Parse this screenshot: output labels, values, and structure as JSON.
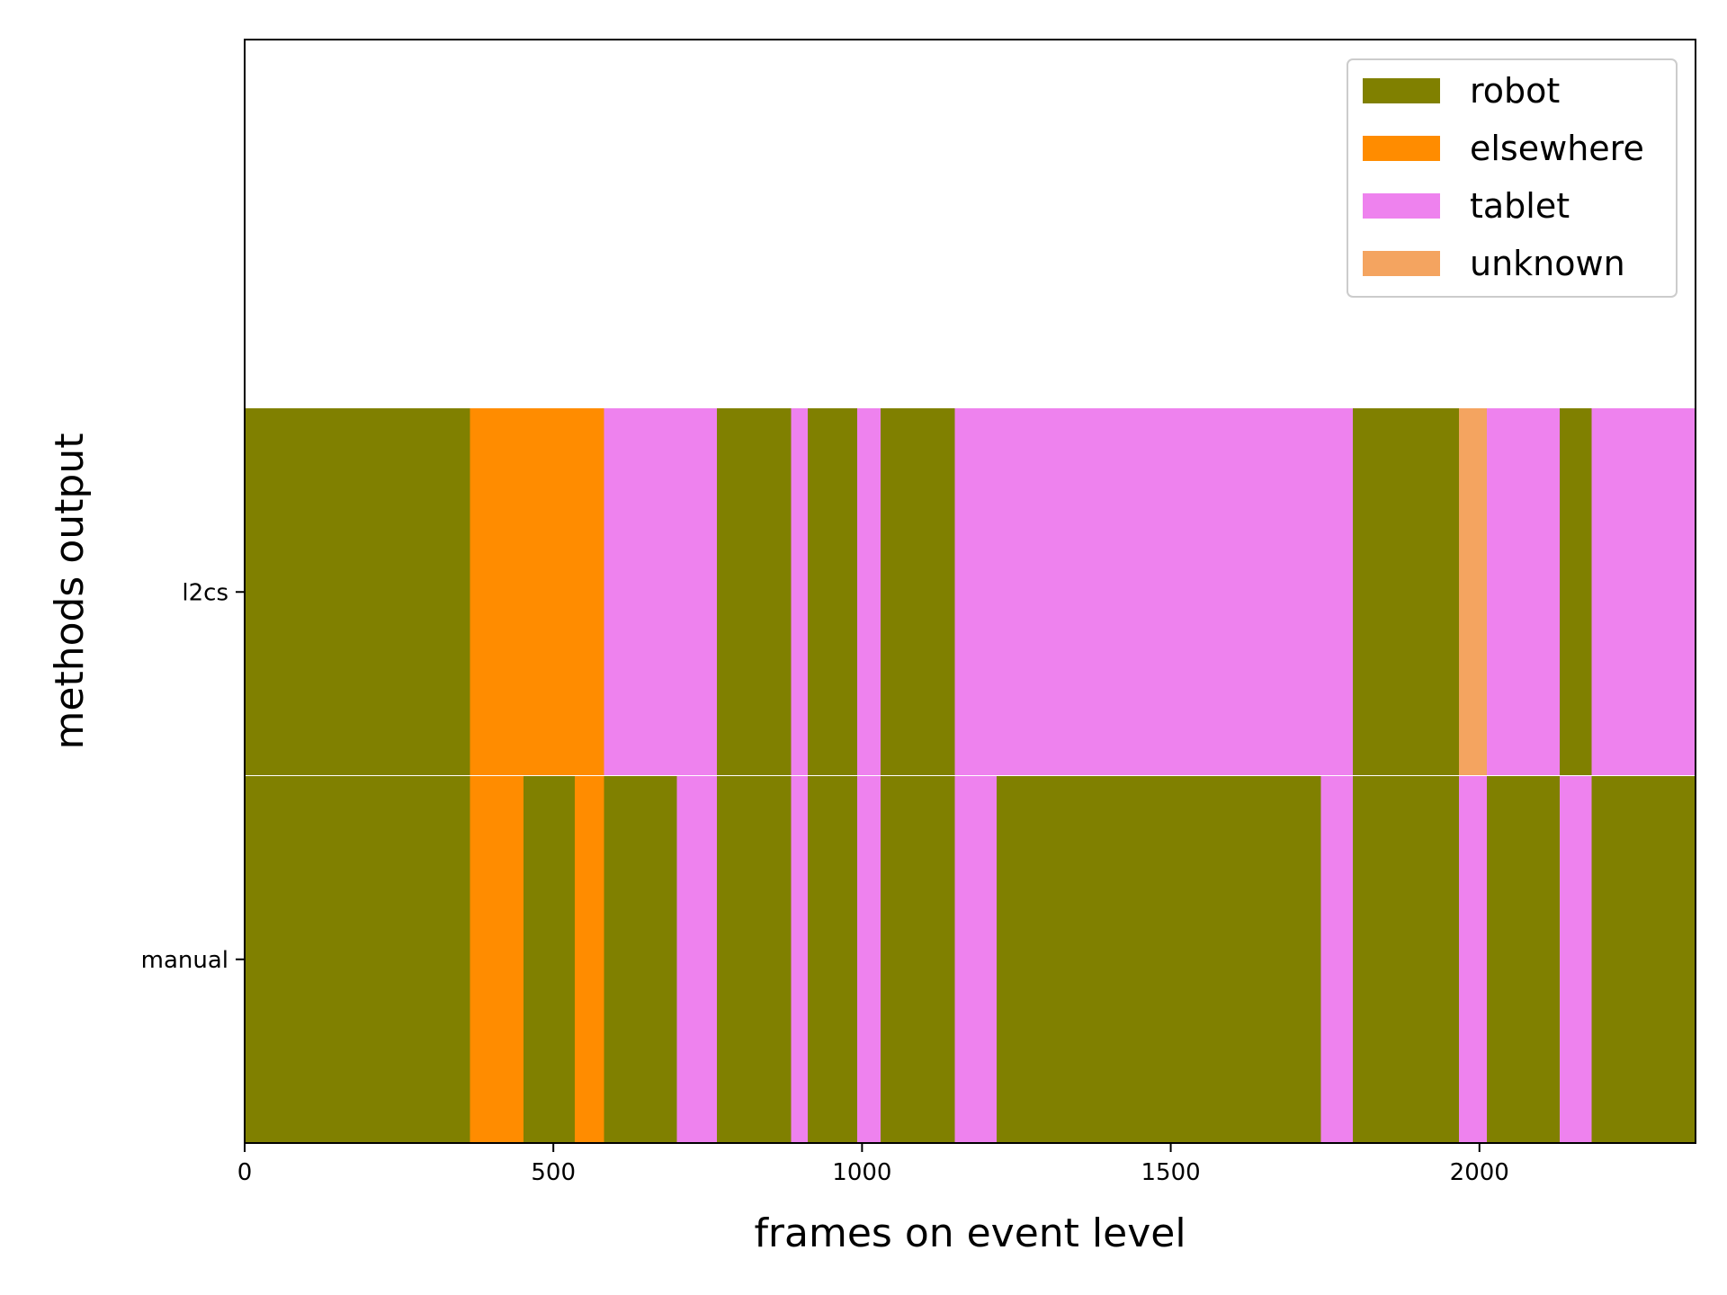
{
  "chart_data": {
    "type": "timeline",
    "title": "",
    "xlabel": "frames on event level",
    "ylabel": "methods output",
    "xlim": [
      0,
      2350
    ],
    "xticks": [
      0,
      500,
      1000,
      1500,
      2000
    ],
    "grid": false,
    "legend": {
      "placement": "top-right",
      "entries": [
        {
          "label": "robot",
          "color": "#808000"
        },
        {
          "label": "elsewhere",
          "color": "#ff8c00"
        },
        {
          "label": "tablet",
          "color": "#ee82ee"
        },
        {
          "label": "unknown",
          "color": "#f4a460"
        }
      ]
    },
    "rows": [
      {
        "label": "manual",
        "segments": [
          {
            "start": 0,
            "end": 365,
            "category": "robot"
          },
          {
            "start": 365,
            "end": 452,
            "category": "elsewhere"
          },
          {
            "start": 452,
            "end": 535,
            "category": "robot"
          },
          {
            "start": 535,
            "end": 582,
            "category": "elsewhere"
          },
          {
            "start": 582,
            "end": 700,
            "category": "robot"
          },
          {
            "start": 700,
            "end": 765,
            "category": "tablet"
          },
          {
            "start": 765,
            "end": 885,
            "category": "robot"
          },
          {
            "start": 885,
            "end": 912,
            "category": "tablet"
          },
          {
            "start": 912,
            "end": 992,
            "category": "robot"
          },
          {
            "start": 992,
            "end": 1030,
            "category": "tablet"
          },
          {
            "start": 1030,
            "end": 1150,
            "category": "robot"
          },
          {
            "start": 1150,
            "end": 1218,
            "category": "tablet"
          },
          {
            "start": 1218,
            "end": 1743,
            "category": "robot"
          },
          {
            "start": 1743,
            "end": 1795,
            "category": "tablet"
          },
          {
            "start": 1795,
            "end": 1967,
            "category": "robot"
          },
          {
            "start": 1967,
            "end": 2012,
            "category": "tablet"
          },
          {
            "start": 2012,
            "end": 2130,
            "category": "robot"
          },
          {
            "start": 2130,
            "end": 2182,
            "category": "tablet"
          },
          {
            "start": 2182,
            "end": 2350,
            "category": "robot"
          }
        ]
      },
      {
        "label": "l2cs",
        "segments": [
          {
            "start": 0,
            "end": 365,
            "category": "robot"
          },
          {
            "start": 365,
            "end": 582,
            "category": "elsewhere"
          },
          {
            "start": 582,
            "end": 765,
            "category": "tablet"
          },
          {
            "start": 765,
            "end": 885,
            "category": "robot"
          },
          {
            "start": 885,
            "end": 912,
            "category": "tablet"
          },
          {
            "start": 912,
            "end": 992,
            "category": "robot"
          },
          {
            "start": 992,
            "end": 1030,
            "category": "tablet"
          },
          {
            "start": 1030,
            "end": 1150,
            "category": "robot"
          },
          {
            "start": 1150,
            "end": 1795,
            "category": "tablet"
          },
          {
            "start": 1795,
            "end": 1967,
            "category": "robot"
          },
          {
            "start": 1967,
            "end": 2012,
            "category": "unknown"
          },
          {
            "start": 2012,
            "end": 2130,
            "category": "tablet"
          },
          {
            "start": 2130,
            "end": 2182,
            "category": "robot"
          },
          {
            "start": 2182,
            "end": 2350,
            "category": "tablet"
          }
        ]
      }
    ]
  }
}
